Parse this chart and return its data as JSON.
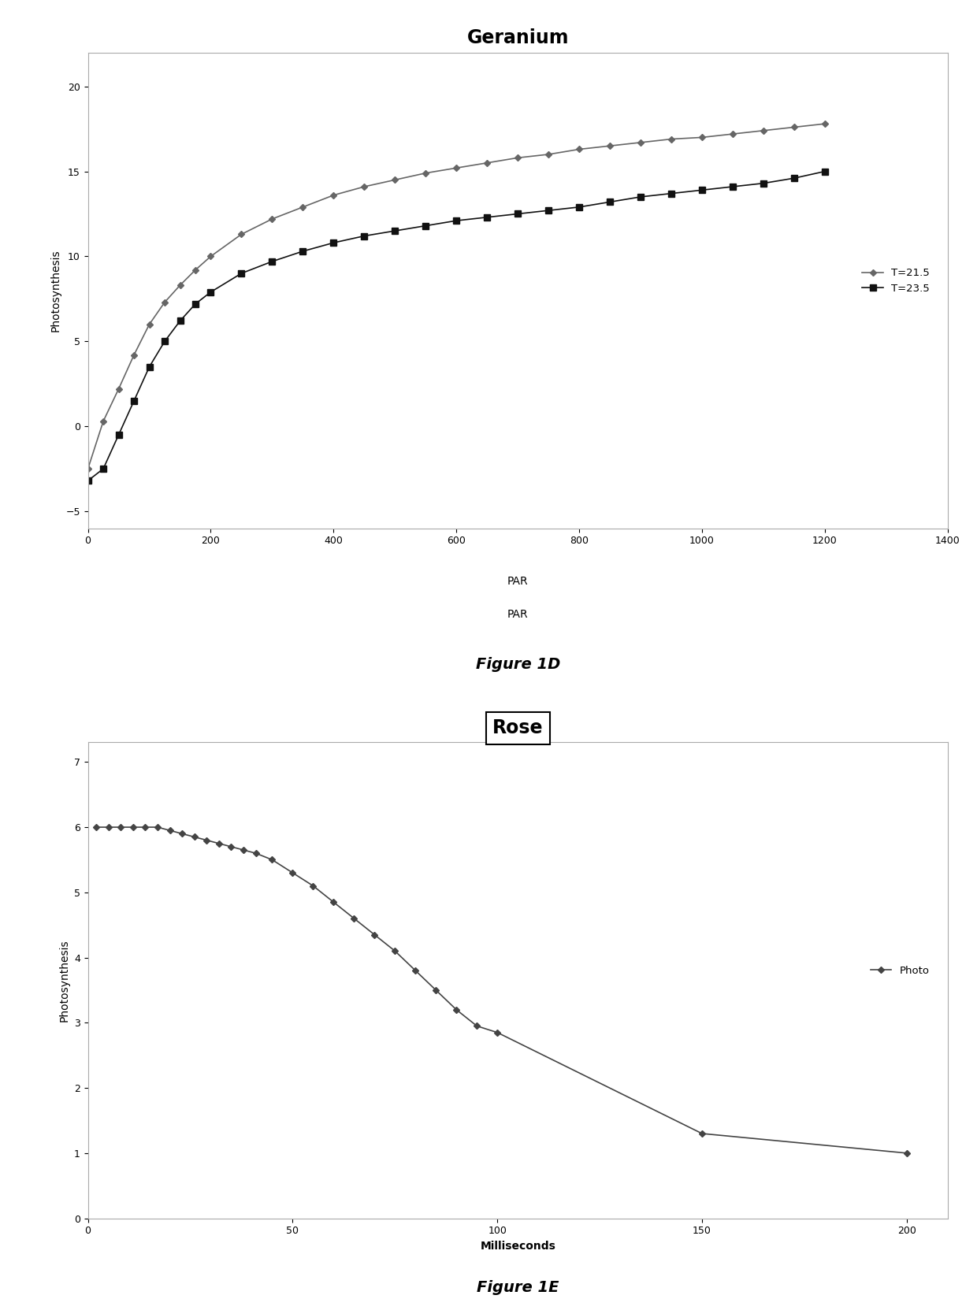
{
  "fig1d_title": "Geranium",
  "fig1d_xlabel": "PAR",
  "fig1d_ylabel": "Photosynthesis",
  "fig1d_xlim": [
    0,
    1400
  ],
  "fig1d_yticks": [
    -5,
    0,
    5,
    10,
    15,
    20
  ],
  "fig1d_xticks": [
    0,
    200,
    400,
    600,
    800,
    1000,
    1200,
    1400
  ],
  "fig1d_caption": "Figure 1D",
  "t215_x": [
    0,
    25,
    50,
    75,
    100,
    125,
    150,
    175,
    200,
    250,
    300,
    350,
    400,
    450,
    500,
    550,
    600,
    650,
    700,
    750,
    800,
    850,
    900,
    950,
    1000,
    1050,
    1100,
    1150,
    1200
  ],
  "t215_y": [
    -2.5,
    0.3,
    2.2,
    4.2,
    6.0,
    7.3,
    8.3,
    9.2,
    10.0,
    11.3,
    12.2,
    12.9,
    13.6,
    14.1,
    14.5,
    14.9,
    15.2,
    15.5,
    15.8,
    16.0,
    16.3,
    16.5,
    16.7,
    16.9,
    17.0,
    17.2,
    17.4,
    17.6,
    17.8
  ],
  "t235_x": [
    0,
    25,
    50,
    75,
    100,
    125,
    150,
    175,
    200,
    250,
    300,
    350,
    400,
    450,
    500,
    550,
    600,
    650,
    700,
    750,
    800,
    850,
    900,
    950,
    1000,
    1050,
    1100,
    1150,
    1200
  ],
  "t235_y": [
    -3.2,
    -2.5,
    -0.5,
    1.5,
    3.5,
    5.0,
    6.2,
    7.2,
    7.9,
    9.0,
    9.7,
    10.3,
    10.8,
    11.2,
    11.5,
    11.8,
    12.1,
    12.3,
    12.5,
    12.7,
    12.9,
    13.2,
    13.5,
    13.7,
    13.9,
    14.1,
    14.3,
    14.6,
    15.0
  ],
  "t215_label": "T=21.5",
  "t235_label": "T=23.5",
  "t215_color": "#666666",
  "t235_color": "#111111",
  "fig1e_title": "Rose",
  "fig1e_xlabel": "Milliseconds",
  "fig1e_ylabel": "Photosynthesis",
  "fig1e_xlim": [
    0,
    210
  ],
  "fig1e_ylim": [
    0,
    7
  ],
  "fig1e_xticks": [
    0,
    50,
    100,
    150,
    200
  ],
  "fig1e_yticks": [
    0,
    1,
    2,
    3,
    4,
    5,
    6,
    7
  ],
  "fig1e_caption": "Figure 1E",
  "photo_x": [
    2,
    5,
    8,
    11,
    14,
    17,
    20,
    23,
    26,
    29,
    32,
    35,
    38,
    41,
    45,
    50,
    55,
    60,
    65,
    70,
    75,
    80,
    85,
    90,
    95,
    100,
    150,
    200
  ],
  "photo_y": [
    6.0,
    6.0,
    6.0,
    6.0,
    6.0,
    6.0,
    5.95,
    5.9,
    5.85,
    5.8,
    5.75,
    5.7,
    5.65,
    5.6,
    5.5,
    5.3,
    5.1,
    4.85,
    4.6,
    4.35,
    4.1,
    3.8,
    3.5,
    3.2,
    2.95,
    2.85,
    1.3,
    1.0
  ],
  "photo_label": "Photo",
  "photo_color": "#444444"
}
